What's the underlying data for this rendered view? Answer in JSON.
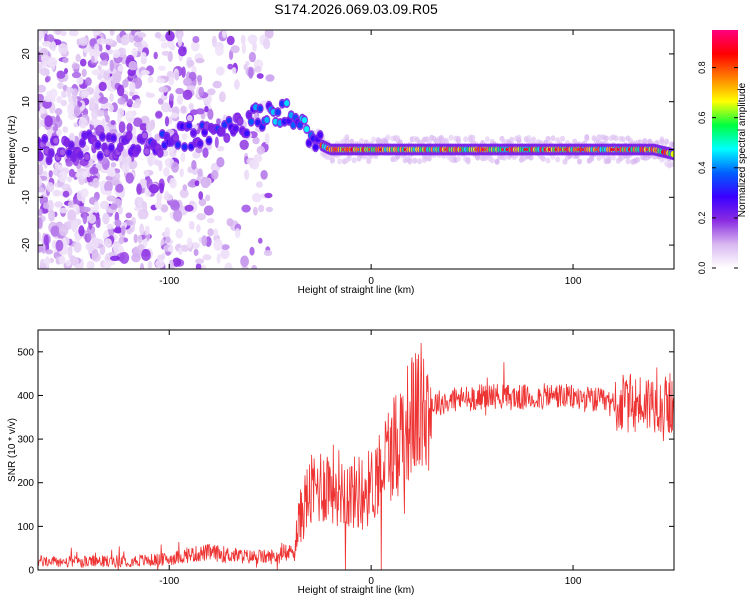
{
  "title": "S174.2026.069.03.09.R05",
  "chart_data": [
    {
      "type": "heatmap",
      "xlabel": "Height of straight line (km)",
      "ylabel": "Frequency (Hz)",
      "xlim": [
        -165,
        150
      ],
      "ylim": [
        -25,
        25
      ],
      "xticks": [
        -100,
        0,
        100
      ],
      "yticks": [
        20,
        10,
        0,
        -10,
        -20
      ],
      "colorbar": {
        "label": "Normalized spectral amplitude",
        "range": [
          0.0,
          0.95
        ],
        "ticks": [
          "0.0",
          "0.2",
          "0.4",
          "0.6",
          "0.8"
        ],
        "tick_values": [
          0.0,
          0.2,
          0.4,
          0.6,
          0.8
        ],
        "colors": [
          "#ffffff",
          "#d8b8f0",
          "#8a2be2",
          "#3a00ff",
          "#0060ff",
          "#00ffff",
          "#00ff40",
          "#ffff00",
          "#ff8000",
          "#ff0000",
          "#ff0080"
        ]
      },
      "ridge": {
        "x": [
          -165,
          -130,
          -110,
          -100,
          -90,
          -80,
          -70,
          -60,
          -55,
          -50,
          -45,
          -40,
          -35,
          -30,
          -25,
          -20,
          -10,
          0,
          20,
          50,
          80,
          100,
          120,
          140,
          150
        ],
        "freq_hz": [
          0,
          1,
          1,
          2,
          3,
          4,
          5,
          6,
          7,
          8,
          8,
          7,
          5,
          3,
          1,
          0,
          0,
          0,
          0,
          0,
          0,
          0,
          0,
          0,
          -1
        ]
      }
    },
    {
      "type": "line",
      "xlabel": "Height of straight line (km)",
      "ylabel": "SNR (10 * v/v)",
      "xlim": [
        -165,
        150
      ],
      "ylim": [
        0,
        550
      ],
      "xticks": [
        -100,
        0,
        100
      ],
      "yticks": [
        500,
        400,
        300,
        200,
        100,
        0
      ],
      "color": "#ee3333",
      "series": [
        {
          "name": "SNR",
          "x": [
            -165,
            -150,
            -130,
            -110,
            -100,
            -90,
            -80,
            -70,
            -60,
            -50,
            -45,
            -40,
            -37,
            -34,
            -31,
            -28,
            -25,
            -20,
            -15,
            -10,
            -5,
            0,
            5,
            10,
            15,
            20,
            25,
            30,
            40,
            50,
            60,
            70,
            80,
            90,
            100,
            110,
            120,
            130,
            140,
            150
          ],
          "y": [
            20,
            18,
            20,
            22,
            25,
            35,
            40,
            35,
            30,
            30,
            32,
            40,
            80,
            140,
            170,
            185,
            195,
            200,
            190,
            175,
            180,
            190,
            240,
            280,
            320,
            350,
            370,
            380,
            390,
            395,
            400,
            395,
            395,
            400,
            395,
            390,
            380,
            380,
            385,
            380
          ]
        }
      ]
    }
  ]
}
